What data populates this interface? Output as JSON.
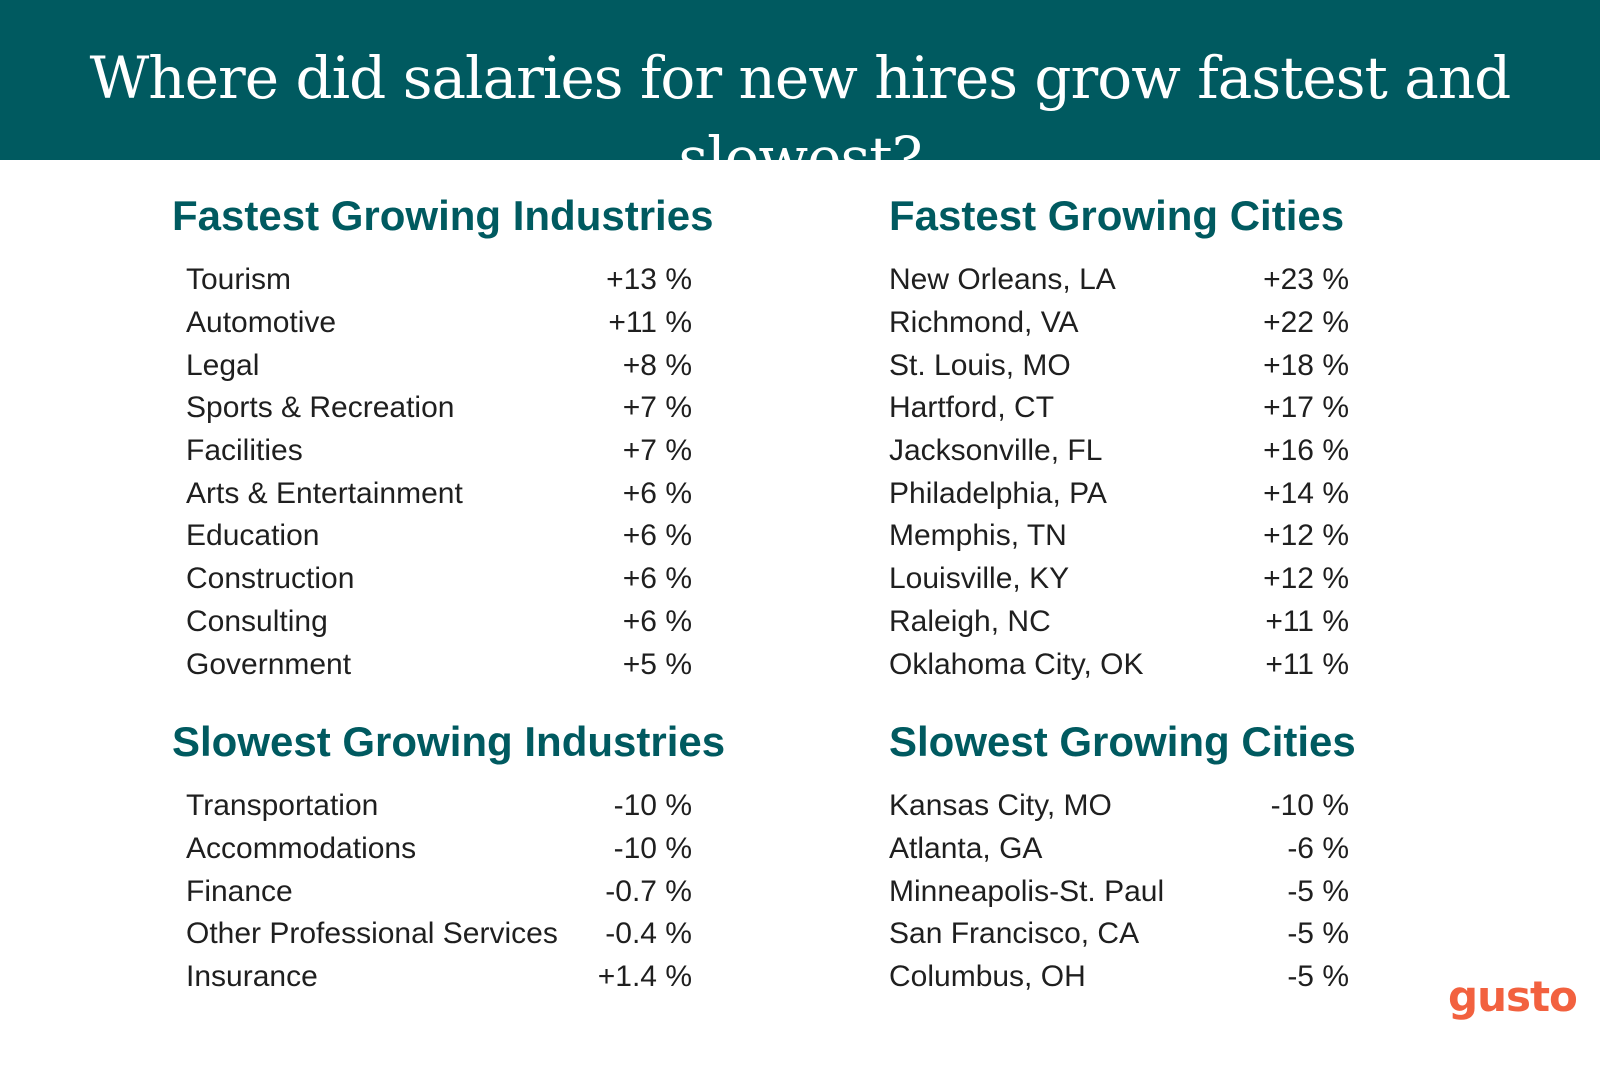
{
  "header": {
    "title": "Where did salaries for new hires grow fastest and slowest?"
  },
  "sections": {
    "fastest_industries": {
      "heading": "Fastest Growing Industries",
      "rows": [
        {
          "name": "Tourism",
          "value": "+13 %"
        },
        {
          "name": "Automotive",
          "value": "+11 %"
        },
        {
          "name": "Legal",
          "value": "+8 %"
        },
        {
          "name": "Sports & Recreation",
          "value": "+7 %"
        },
        {
          "name": "Facilities",
          "value": "+7 %"
        },
        {
          "name": "Arts & Entertainment",
          "value": "+6 %"
        },
        {
          "name": "Education",
          "value": "+6 %"
        },
        {
          "name": "Construction",
          "value": "+6 %"
        },
        {
          "name": "Consulting",
          "value": "+6 %"
        },
        {
          "name": "Government",
          "value": "+5 %"
        }
      ]
    },
    "fastest_cities": {
      "heading": "Fastest Growing Cities",
      "rows": [
        {
          "name": "New Orleans, LA",
          "value": "+23 %"
        },
        {
          "name": "Richmond, VA",
          "value": "+22 %"
        },
        {
          "name": "St. Louis, MO",
          "value": "+18 %"
        },
        {
          "name": "Hartford, CT",
          "value": "+17 %"
        },
        {
          "name": "Jacksonville, FL",
          "value": "+16 %"
        },
        {
          "name": "Philadelphia, PA",
          "value": "+14 %"
        },
        {
          "name": "Memphis, TN",
          "value": "+12 %"
        },
        {
          "name": "Louisville, KY",
          "value": "+12 %"
        },
        {
          "name": "Raleigh, NC",
          "value": "+11 %"
        },
        {
          "name": "Oklahoma City, OK",
          "value": "+11 %"
        }
      ]
    },
    "slowest_industries": {
      "heading": "Slowest Growing Industries",
      "rows": [
        {
          "name": "Transportation",
          "value": "-10 %"
        },
        {
          "name": "Accommodations",
          "value": "-10 %"
        },
        {
          "name": "Finance",
          "value": "-0.7 %"
        },
        {
          "name": "Other Professional Services",
          "value": "-0.4 %"
        },
        {
          "name": "Insurance",
          "value": "+1.4 %"
        }
      ]
    },
    "slowest_cities": {
      "heading": "Slowest Growing Cities",
      "rows": [
        {
          "name": "Kansas City, MO",
          "value": "-10 %"
        },
        {
          "name": "Atlanta, GA",
          "value": "-6 %"
        },
        {
          "name": "Minneapolis-St. Paul",
          "value": "-5 %"
        },
        {
          "name": "San Francisco, CA",
          "value": "-5 %"
        },
        {
          "name": "Columbus, OH",
          "value": "-5 %"
        }
      ]
    }
  },
  "logo": {
    "text": "gusto"
  },
  "colors": {
    "banner": "#005a60",
    "heading": "#005a60",
    "logo": "#f2613f",
    "text": "#1f1f1f"
  }
}
